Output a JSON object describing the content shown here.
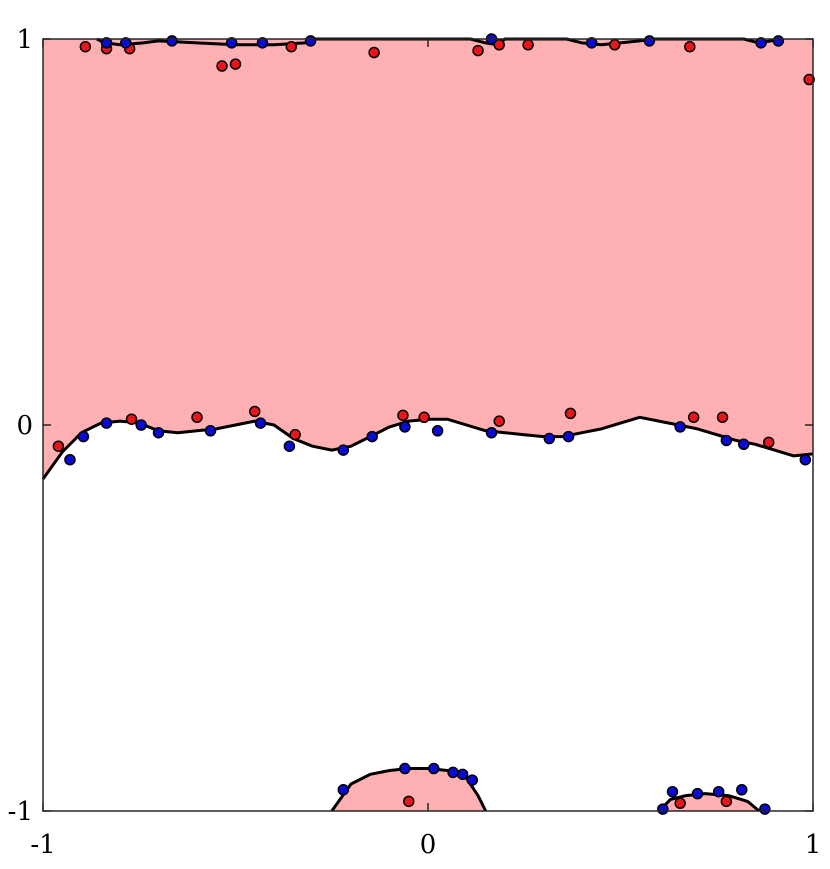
{
  "chart_data": {
    "type": "scatter",
    "xlim": [
      -1,
      1
    ],
    "ylim": [
      -1,
      1
    ],
    "grid": false,
    "legend": "none",
    "x_ticks": [
      "-1",
      "0",
      "1"
    ],
    "y_ticks": [
      "-1",
      "0",
      "1"
    ],
    "colors": {
      "region_fill": "#ffb0b2",
      "boundary": "#000000",
      "red_points": "#e8161a",
      "blue_points": "#0a0ad2",
      "axes": "#262626"
    },
    "series": [
      {
        "color": "red",
        "points": [
          [
            -0.96,
            -0.055
          ],
          [
            -0.77,
            0.015
          ],
          [
            -0.6,
            0.02
          ],
          [
            -0.45,
            0.035
          ],
          [
            -0.345,
            -0.025
          ],
          [
            -0.065,
            0.025
          ],
          [
            -0.01,
            0.02
          ],
          [
            0.185,
            0.01
          ],
          [
            0.37,
            0.03
          ],
          [
            0.69,
            0.02
          ],
          [
            0.765,
            0.02
          ],
          [
            0.885,
            -0.045
          ],
          [
            -0.89,
            0.98
          ],
          [
            -0.835,
            0.975
          ],
          [
            -0.775,
            0.975
          ],
          [
            -0.535,
            0.93
          ],
          [
            -0.5,
            0.935
          ],
          [
            -0.355,
            0.98
          ],
          [
            -0.14,
            0.965
          ],
          [
            0.13,
            0.97
          ],
          [
            0.185,
            0.985
          ],
          [
            0.26,
            0.985
          ],
          [
            0.485,
            0.985
          ],
          [
            0.68,
            0.98
          ],
          [
            0.99,
            0.895
          ],
          [
            -0.05,
            -0.975
          ],
          [
            0.655,
            -0.98
          ],
          [
            0.775,
            -0.975
          ]
        ]
      },
      {
        "color": "blue",
        "points": [
          [
            -0.93,
            -0.09
          ],
          [
            -0.895,
            -0.03
          ],
          [
            -0.835,
            0.005
          ],
          [
            -0.745,
            0.0
          ],
          [
            -0.7,
            -0.02
          ],
          [
            -0.565,
            -0.015
          ],
          [
            -0.435,
            0.005
          ],
          [
            -0.36,
            -0.055
          ],
          [
            -0.22,
            -0.065
          ],
          [
            -0.145,
            -0.03
          ],
          [
            -0.06,
            -0.005
          ],
          [
            0.025,
            -0.015
          ],
          [
            0.165,
            -0.02
          ],
          [
            0.315,
            -0.035
          ],
          [
            0.365,
            -0.03
          ],
          [
            0.655,
            -0.005
          ],
          [
            0.775,
            -0.04
          ],
          [
            0.82,
            -0.05
          ],
          [
            0.98,
            -0.09
          ],
          [
            -0.835,
            0.99
          ],
          [
            -0.785,
            0.99
          ],
          [
            -0.665,
            0.995
          ],
          [
            -0.51,
            0.99
          ],
          [
            -0.43,
            0.99
          ],
          [
            -0.305,
            0.995
          ],
          [
            0.165,
            1.0
          ],
          [
            0.425,
            0.99
          ],
          [
            0.575,
            0.995
          ],
          [
            0.865,
            0.99
          ],
          [
            0.91,
            0.995
          ],
          [
            -0.22,
            -0.945
          ],
          [
            -0.06,
            -0.89
          ],
          [
            0.015,
            -0.89
          ],
          [
            0.065,
            -0.9
          ],
          [
            0.09,
            -0.905
          ],
          [
            0.115,
            -0.92
          ],
          [
            0.61,
            -0.995
          ],
          [
            0.635,
            -0.95
          ],
          [
            0.7,
            -0.955
          ],
          [
            0.755,
            -0.95
          ],
          [
            0.815,
            -0.945
          ],
          [
            0.875,
            -0.995
          ]
        ]
      }
    ],
    "boundaries": {
      "middle": [
        [
          -1,
          -0.14
        ],
        [
          -0.95,
          -0.07
        ],
        [
          -0.9,
          -0.02
        ],
        [
          -0.85,
          0.005
        ],
        [
          -0.8,
          0.01
        ],
        [
          -0.75,
          0.005
        ],
        [
          -0.7,
          -0.015
        ],
        [
          -0.65,
          -0.02
        ],
        [
          -0.6,
          -0.015
        ],
        [
          -0.55,
          -0.01
        ],
        [
          -0.5,
          0.0
        ],
        [
          -0.45,
          0.01
        ],
        [
          -0.4,
          0.0
        ],
        [
          -0.35,
          -0.035
        ],
        [
          -0.3,
          -0.055
        ],
        [
          -0.25,
          -0.065
        ],
        [
          -0.2,
          -0.055
        ],
        [
          -0.15,
          -0.03
        ],
        [
          -0.1,
          -0.005
        ],
        [
          -0.05,
          0.01
        ],
        [
          0.0,
          0.015
        ],
        [
          0.05,
          0.015
        ],
        [
          0.1,
          0.0
        ],
        [
          0.15,
          -0.015
        ],
        [
          0.2,
          -0.02
        ],
        [
          0.25,
          -0.025
        ],
        [
          0.3,
          -0.03
        ],
        [
          0.35,
          -0.03
        ],
        [
          0.4,
          -0.02
        ],
        [
          0.45,
          -0.01
        ],
        [
          0.5,
          0.005
        ],
        [
          0.55,
          0.02
        ],
        [
          0.6,
          0.01
        ],
        [
          0.65,
          0.0
        ],
        [
          0.7,
          -0.01
        ],
        [
          0.75,
          -0.025
        ],
        [
          0.8,
          -0.04
        ],
        [
          0.85,
          -0.05
        ],
        [
          0.9,
          -0.065
        ],
        [
          0.95,
          -0.08
        ],
        [
          1.0,
          -0.075
        ]
      ],
      "top": [
        [
          -0.86,
          1.0
        ],
        [
          -0.84,
          0.99
        ],
        [
          -0.8,
          0.985
        ],
        [
          -0.74,
          0.99
        ],
        [
          -0.7,
          0.995
        ],
        [
          -0.6,
          0.99
        ],
        [
          -0.5,
          0.985
        ],
        [
          -0.4,
          0.985
        ],
        [
          -0.32,
          0.99
        ],
        [
          -0.3,
          1.0
        ],
        [
          0.11,
          1.0
        ],
        [
          0.15,
          0.99
        ],
        [
          0.18,
          0.985
        ],
        [
          0.2,
          1.0
        ],
        [
          0.36,
          1.0
        ],
        [
          0.4,
          0.99
        ],
        [
          0.45,
          0.985
        ],
        [
          0.5,
          0.99
        ],
        [
          0.55,
          0.995
        ],
        [
          0.58,
          1.0
        ],
        [
          0.82,
          1.0
        ],
        [
          0.86,
          0.99
        ],
        [
          0.92,
          1.0
        ]
      ],
      "bump_center": [
        [
          -0.25,
          -1.0
        ],
        [
          -0.2,
          -0.93
        ],
        [
          -0.15,
          -0.905
        ],
        [
          -0.1,
          -0.895
        ],
        [
          -0.05,
          -0.89
        ],
        [
          0.0,
          -0.89
        ],
        [
          0.05,
          -0.895
        ],
        [
          0.1,
          -0.915
        ],
        [
          0.13,
          -0.96
        ],
        [
          0.15,
          -1.0
        ]
      ],
      "bump_right": [
        [
          0.6,
          -1.0
        ],
        [
          0.63,
          -0.97
        ],
        [
          0.67,
          -0.96
        ],
        [
          0.72,
          -0.955
        ],
        [
          0.78,
          -0.96
        ],
        [
          0.83,
          -0.975
        ],
        [
          0.86,
          -1.0
        ]
      ]
    }
  }
}
